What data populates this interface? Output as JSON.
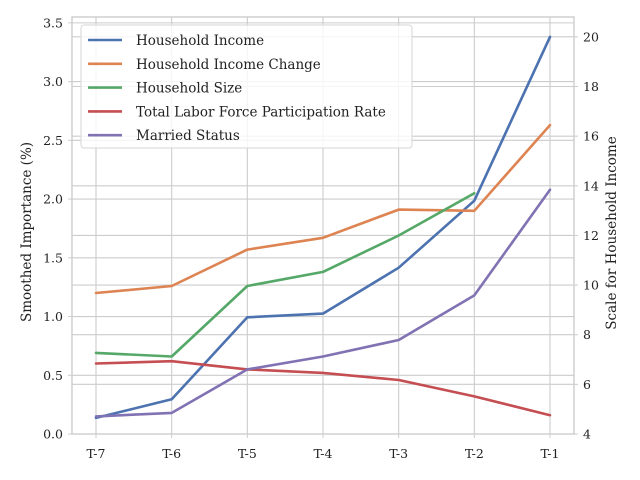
{
  "chart_data": {
    "type": "line",
    "categories": [
      "T-7",
      "T-6",
      "T-5",
      "T-4",
      "T-3",
      "T-2",
      "T-1"
    ],
    "ylabel": "Smoothed Importance (%)",
    "y2label": "Scale for Household Income",
    "ylim": [
      0.0,
      3.55
    ],
    "y2lim": [
      4.0,
      20.8
    ],
    "yticks": [
      "0.0",
      "0.5",
      "1.0",
      "1.5",
      "2.0",
      "2.5",
      "3.0",
      "3.5"
    ],
    "y2ticks": [
      "4",
      "6",
      "8",
      "10",
      "12",
      "14",
      "16",
      "18",
      "20"
    ],
    "grid": true,
    "legend_position": "top-left",
    "series": [
      {
        "name": "Household Income",
        "color": "#4c72b0",
        "axis": "right",
        "values": [
          4.65,
          5.4,
          8.7,
          8.85,
          10.7,
          13.4,
          20.0
        ]
      },
      {
        "name": "Household Income Change",
        "color": "#dd8452",
        "axis": "left",
        "values": [
          1.2,
          1.26,
          1.57,
          1.67,
          1.91,
          1.9,
          2.63
        ]
      },
      {
        "name": "Household Size",
        "color": "#55a868",
        "axis": "left",
        "values": [
          0.69,
          0.66,
          1.26,
          1.38,
          1.69,
          2.05,
          null
        ]
      },
      {
        "name": "Total Labor Force Participation Rate",
        "color": "#c44e52",
        "axis": "left",
        "values": [
          0.6,
          0.62,
          0.55,
          0.52,
          0.46,
          0.32,
          0.16
        ]
      },
      {
        "name": "Married Status",
        "color": "#8172b3",
        "axis": "left",
        "values": [
          0.15,
          0.18,
          0.55,
          0.66,
          0.8,
          1.18,
          2.08
        ]
      }
    ]
  }
}
